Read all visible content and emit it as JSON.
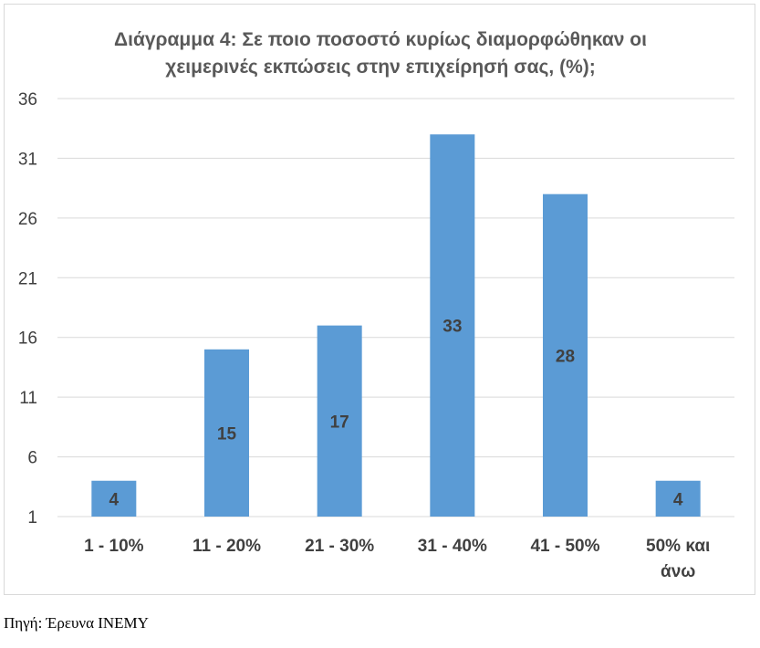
{
  "chart_data": {
    "type": "bar",
    "title_lines": [
      "Διάγραμμα 4: Σε ποιο ποσοστό κυρίως διαμορφώθηκαν οι",
      "χειμερινές εκπώσεις στην επιχείρησή σας, (%);"
    ],
    "categories": [
      [
        "1 - 10%"
      ],
      [
        "11 - 20%"
      ],
      [
        "21 - 30%"
      ],
      [
        "31 - 40%"
      ],
      [
        "41 - 50%"
      ],
      [
        "50% και",
        "άνω"
      ]
    ],
    "values": [
      4,
      15,
      17,
      33,
      28,
      4
    ],
    "data_labels": [
      "4",
      "15",
      "17",
      "33",
      "28",
      "4"
    ],
    "yticks": [
      "1",
      "6",
      "11",
      "16",
      "21",
      "26",
      "31",
      "36"
    ],
    "ylim": [
      1,
      36
    ],
    "grid": true,
    "bar_color": "#5b9bd5",
    "grid_color": "#d9d9d9",
    "legend": "none"
  },
  "source_note": "Πηγή: Έρευνα ΙΝΕΜΥ"
}
